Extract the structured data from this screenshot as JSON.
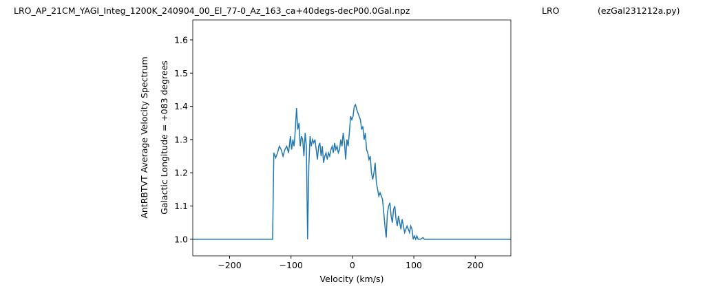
{
  "chart_data": {
    "type": "line",
    "titles": [
      "LRO_AP_21CM_YAGI_Integ_1200K_240904_00_El_77-0_Az_163_ca+40degs-decP00.0Gal.npz",
      "LRO",
      "(ezGal231212a.py)"
    ],
    "xlabel": "Velocity (km/s)",
    "ylabel": [
      "AntRBTVT Average Velocity Spectrum",
      "Galactic Longitude = +083 degrees"
    ],
    "xlim": [
      -260,
      258
    ],
    "ylim": [
      0.95,
      1.66
    ],
    "xticks": [
      {
        "value": -200,
        "label": "−200"
      },
      {
        "value": -100,
        "label": "−100"
      },
      0,
      100,
      200
    ],
    "yticks": [
      {
        "value": 1,
        "label": "1.0"
      },
      1.1,
      1.2,
      1.3,
      1.4,
      1.5,
      1.6
    ],
    "series": [
      {
        "color": "#1f77b4",
        "x": [
          -260,
          -130,
          -128,
          -125,
          -122,
          -119,
          -116,
          -113,
          -110,
          -107,
          -104,
          -101,
          -99,
          -97,
          -95,
          -93,
          -91,
          -89,
          -87,
          -85,
          -83,
          -81,
          -79,
          -77,
          -75,
          -73,
          -71,
          -69,
          -67,
          -65,
          -63,
          -61,
          -59,
          -57,
          -55,
          -53,
          -51,
          -49,
          -47,
          -45,
          -43,
          -41,
          -39,
          -37,
          -35,
          -33,
          -31,
          -29,
          -27,
          -25,
          -23,
          -21,
          -19,
          -17,
          -15,
          -13,
          -11,
          -9,
          -7,
          -5,
          -3,
          -1,
          1,
          3,
          5,
          7,
          9,
          11,
          13,
          15,
          17,
          19,
          21,
          23,
          25,
          27,
          29,
          31,
          33,
          35,
          37,
          39,
          41,
          43,
          45,
          47,
          49,
          51,
          53,
          55,
          57,
          59,
          61,
          63,
          65,
          67,
          69,
          71,
          73,
          75,
          77,
          79,
          81,
          83,
          85,
          87,
          89,
          91,
          93,
          95,
          97,
          99,
          101,
          103,
          105,
          107,
          109,
          111,
          115,
          117,
          258
        ],
        "values": [
          1.0,
          1.0,
          1.26,
          1.245,
          1.26,
          1.28,
          1.27,
          1.25,
          1.27,
          1.28,
          1.26,
          1.31,
          1.27,
          1.3,
          1.28,
          1.33,
          1.395,
          1.33,
          1.35,
          1.28,
          1.31,
          1.3,
          1.25,
          1.32,
          1.28,
          1.0,
          1.22,
          1.31,
          1.28,
          1.3,
          1.29,
          1.3,
          1.27,
          1.24,
          1.28,
          1.29,
          1.25,
          1.28,
          1.23,
          1.25,
          1.26,
          1.24,
          1.26,
          1.25,
          1.27,
          1.28,
          1.26,
          1.29,
          1.27,
          1.28,
          1.26,
          1.27,
          1.3,
          1.28,
          1.32,
          1.29,
          1.24,
          1.3,
          1.28,
          1.32,
          1.37,
          1.36,
          1.37,
          1.4,
          1.405,
          1.39,
          1.38,
          1.37,
          1.36,
          1.33,
          1.34,
          1.3,
          1.32,
          1.27,
          1.26,
          1.24,
          1.25,
          1.2,
          1.18,
          1.2,
          1.23,
          1.17,
          1.15,
          1.13,
          1.14,
          1.13,
          1.12,
          1.08,
          1.04,
          1.005,
          1.08,
          1.1,
          1.11,
          1.07,
          1.05,
          1.09,
          1.1,
          1.06,
          1.04,
          1.07,
          1.05,
          1.03,
          1.06,
          1.04,
          1.02,
          1.03,
          1.04,
          1.03,
          1.02,
          1.04,
          1.03,
          1.0,
          1.01,
          1.0,
          1.01,
          1.0,
          1.0,
          1.0,
          1.005,
          1.0,
          1.0
        ]
      }
    ]
  }
}
